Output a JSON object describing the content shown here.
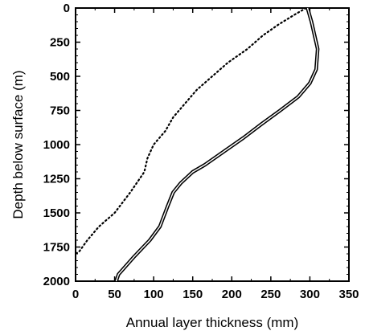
{
  "chart_data": {
    "type": "line",
    "title": "",
    "xlabel": "Annual layer thickness (mm)",
    "ylabel": "Depth below surface (m)",
    "xlim": [
      0,
      350
    ],
    "ylim": [
      2000,
      0
    ],
    "y_axis_inverted": true,
    "grid": false,
    "x_ticks": [
      0,
      50,
      100,
      150,
      200,
      250,
      300,
      350
    ],
    "y_ticks": [
      0,
      250,
      500,
      750,
      1000,
      1250,
      1500,
      1750,
      2000
    ],
    "series": [
      {
        "style": "solid-double",
        "color": "#000000",
        "points": [
          [
            297,
            0
          ],
          [
            302,
            100
          ],
          [
            308,
            250
          ],
          [
            310,
            300
          ],
          [
            308,
            450
          ],
          [
            300,
            550
          ],
          [
            285,
            650
          ],
          [
            262,
            750
          ],
          [
            238,
            850
          ],
          [
            215,
            950
          ],
          [
            190,
            1050
          ],
          [
            165,
            1150
          ],
          [
            150,
            1200
          ],
          [
            135,
            1280
          ],
          [
            125,
            1350
          ],
          [
            118,
            1450
          ],
          [
            108,
            1600
          ],
          [
            95,
            1700
          ],
          [
            75,
            1820
          ],
          [
            55,
            1950
          ],
          [
            52,
            2000
          ]
        ]
      },
      {
        "style": "dotted",
        "color": "#000000",
        "points": [
          [
            295,
            0
          ],
          [
            280,
            50
          ],
          [
            260,
            120
          ],
          [
            240,
            200
          ],
          [
            220,
            300
          ],
          [
            195,
            400
          ],
          [
            175,
            500
          ],
          [
            155,
            600
          ],
          [
            140,
            700
          ],
          [
            125,
            800
          ],
          [
            115,
            900
          ],
          [
            100,
            1000
          ],
          [
            92,
            1100
          ],
          [
            88,
            1200
          ],
          [
            70,
            1350
          ],
          [
            50,
            1500
          ],
          [
            30,
            1600
          ],
          [
            15,
            1700
          ],
          [
            5,
            1780
          ],
          [
            0,
            1800
          ]
        ]
      }
    ]
  }
}
